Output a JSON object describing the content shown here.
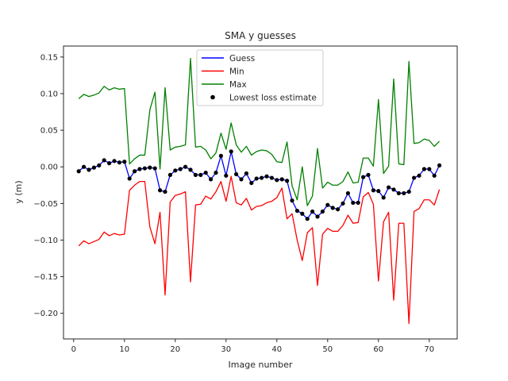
{
  "chart_data": {
    "type": "line",
    "title": "SMA y guesses",
    "xlabel": "Image number",
    "ylabel": "y (m)",
    "xlim": [
      -2,
      75.5
    ],
    "ylim": [
      -0.235,
      0.165
    ],
    "xticks": [
      0,
      10,
      20,
      30,
      40,
      50,
      60,
      70
    ],
    "xtick_labels": [
      "0",
      "10",
      "20",
      "30",
      "40",
      "50",
      "60",
      "70"
    ],
    "yticks": [
      -0.2,
      -0.15,
      -0.1,
      -0.05,
      0.0,
      0.05,
      0.1,
      0.15
    ],
    "ytick_labels": [
      "−0.20",
      "−0.15",
      "−0.10",
      "−0.05",
      "0.00",
      "0.05",
      "0.10",
      "0.15"
    ],
    "grid": false,
    "legend_position": "top-center",
    "x": [
      1,
      2,
      3,
      4,
      5,
      6,
      7,
      8,
      9,
      10,
      11,
      12,
      13,
      14,
      15,
      16,
      17,
      18,
      19,
      20,
      21,
      22,
      23,
      24,
      25,
      26,
      27,
      28,
      29,
      30,
      31,
      32,
      33,
      34,
      35,
      36,
      37,
      38,
      39,
      40,
      41,
      42,
      43,
      44,
      45,
      46,
      47,
      48,
      49,
      50,
      51,
      52,
      53,
      54,
      55,
      56,
      57,
      58,
      59,
      60,
      61,
      62,
      63,
      64,
      65,
      66,
      67,
      68,
      69,
      70,
      71,
      72
    ],
    "series": [
      {
        "name": "Guess",
        "color": "#0000ff",
        "kind": "line",
        "values": [
          -0.006,
          0.0,
          -0.004,
          -0.001,
          0.002,
          0.009,
          0.005,
          0.008,
          0.006,
          0.007,
          -0.016,
          -0.006,
          -0.003,
          -0.002,
          -0.001,
          -0.002,
          -0.032,
          -0.034,
          -0.011,
          -0.005,
          -0.003,
          0.0,
          -0.004,
          -0.011,
          -0.011,
          -0.008,
          -0.017,
          -0.008,
          0.015,
          -0.012,
          0.021,
          -0.01,
          -0.017,
          -0.009,
          -0.022,
          -0.016,
          -0.015,
          -0.013,
          -0.015,
          -0.018,
          -0.017,
          -0.019,
          -0.046,
          -0.06,
          -0.064,
          -0.071,
          -0.061,
          -0.068,
          -0.061,
          -0.052,
          -0.056,
          -0.058,
          -0.05,
          -0.036,
          -0.049,
          -0.049,
          -0.014,
          -0.011,
          -0.032,
          -0.033,
          -0.042,
          -0.028,
          -0.031,
          -0.036,
          -0.036,
          -0.034,
          -0.015,
          -0.012,
          -0.003,
          -0.003,
          -0.012,
          0.002
        ]
      },
      {
        "name": "Min",
        "color": "#ff0000",
        "kind": "line",
        "values": [
          -0.108,
          -0.101,
          -0.105,
          -0.102,
          -0.099,
          -0.089,
          -0.094,
          -0.091,
          -0.093,
          -0.092,
          -0.032,
          -0.025,
          -0.02,
          -0.02,
          -0.082,
          -0.105,
          -0.062,
          -0.175,
          -0.048,
          -0.039,
          -0.037,
          -0.034,
          -0.157,
          -0.052,
          -0.051,
          -0.04,
          -0.044,
          -0.034,
          -0.02,
          -0.047,
          -0.013,
          -0.049,
          -0.052,
          -0.043,
          -0.059,
          -0.054,
          -0.053,
          -0.049,
          -0.047,
          -0.042,
          -0.029,
          -0.071,
          -0.064,
          -0.1,
          -0.128,
          -0.09,
          -0.083,
          -0.162,
          -0.092,
          -0.084,
          -0.088,
          -0.088,
          -0.08,
          -0.066,
          -0.077,
          -0.076,
          -0.041,
          -0.035,
          -0.051,
          -0.156,
          -0.075,
          -0.062,
          -0.182,
          -0.077,
          -0.077,
          -0.214,
          -0.061,
          -0.057,
          -0.045,
          -0.045,
          -0.052,
          -0.031
        ]
      },
      {
        "name": "Max",
        "color": "#008000",
        "kind": "line",
        "values": [
          0.093,
          0.099,
          0.096,
          0.098,
          0.101,
          0.11,
          0.105,
          0.108,
          0.106,
          0.107,
          0.004,
          0.011,
          0.016,
          0.016,
          0.078,
          0.102,
          -0.003,
          0.108,
          0.023,
          0.027,
          0.028,
          0.03,
          0.148,
          0.027,
          0.028,
          0.023,
          0.011,
          0.019,
          0.046,
          0.024,
          0.06,
          0.03,
          0.02,
          0.028,
          0.016,
          0.021,
          0.023,
          0.022,
          0.017,
          0.007,
          0.006,
          0.034,
          -0.026,
          -0.045,
          0.0,
          -0.053,
          -0.04,
          0.025,
          -0.029,
          -0.021,
          -0.025,
          -0.025,
          -0.02,
          -0.007,
          -0.022,
          -0.021,
          0.012,
          0.012,
          0.001,
          0.092,
          -0.009,
          0.001,
          0.12,
          0.004,
          0.003,
          0.144,
          0.032,
          0.033,
          0.038,
          0.036,
          0.028,
          0.035
        ]
      },
      {
        "name": "Lowest loss estimate",
        "color": "#000000",
        "kind": "scatter",
        "values": [
          -0.006,
          0.0,
          -0.004,
          -0.001,
          0.002,
          0.009,
          0.005,
          0.008,
          0.006,
          0.007,
          -0.016,
          -0.006,
          -0.003,
          -0.002,
          -0.001,
          -0.002,
          -0.032,
          -0.034,
          -0.011,
          -0.005,
          -0.003,
          0.0,
          -0.004,
          -0.011,
          -0.011,
          -0.008,
          -0.017,
          -0.008,
          0.015,
          -0.012,
          0.021,
          -0.01,
          -0.017,
          -0.009,
          -0.022,
          -0.016,
          -0.015,
          -0.013,
          -0.015,
          -0.018,
          -0.017,
          -0.019,
          -0.046,
          -0.06,
          -0.064,
          -0.071,
          -0.061,
          -0.068,
          -0.061,
          -0.052,
          -0.056,
          -0.058,
          -0.05,
          -0.036,
          -0.049,
          -0.049,
          -0.014,
          -0.011,
          -0.032,
          -0.033,
          -0.042,
          -0.028,
          -0.031,
          -0.036,
          -0.036,
          -0.034,
          -0.015,
          -0.012,
          -0.003,
          -0.003,
          -0.012,
          0.002
        ]
      }
    ]
  }
}
